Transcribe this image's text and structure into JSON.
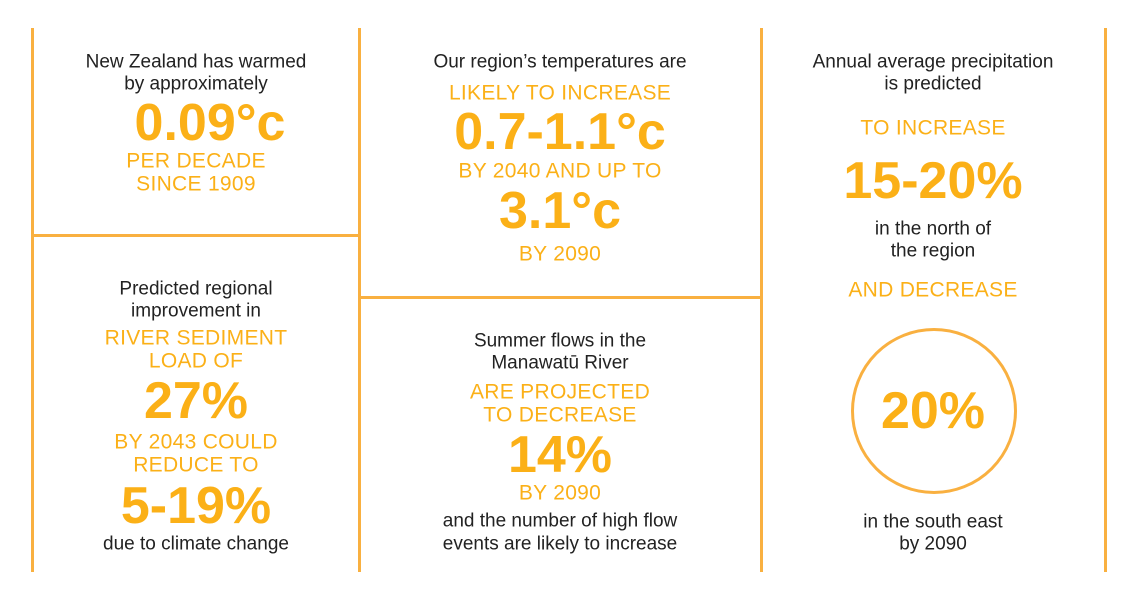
{
  "accent_color": "#FBB017",
  "line_color": "#F9B040",
  "panels": {
    "warming": {
      "intro": [
        "New Zealand has warmed",
        "by approximately"
      ],
      "value": "0.09°c",
      "detail": [
        "PER DECADE",
        "SINCE 1909"
      ]
    },
    "sediment": {
      "intro": [
        "Predicted regional",
        "improvement in"
      ],
      "highlight1": [
        "RIVER SEDIMENT",
        "LOAD OF"
      ],
      "value1": "27%",
      "highlight2": [
        "BY 2043 COULD",
        "REDUCE TO"
      ],
      "value2": "5-19%",
      "outro": "due to climate change"
    },
    "temperature": {
      "intro": "Our region’s temperatures are",
      "highlight1": "LIKELY TO INCREASE",
      "value1": "0.7-1.1°c",
      "highlight2": "BY 2040 AND UP TO",
      "value2": "3.1°c",
      "highlight3": "BY 2090"
    },
    "river": {
      "intro": [
        "Summer flows in the",
        "Manawatū River"
      ],
      "highlight1": [
        "ARE PROJECTED",
        "TO DECREASE"
      ],
      "value": "14%",
      "highlight2": "BY 2090",
      "outro": [
        "and the number of high flow",
        "events are likely to increase"
      ]
    },
    "precipitation": {
      "intro": [
        "Annual average precipitation",
        "is predicted"
      ],
      "highlight1": "TO INCREASE",
      "value1": "15-20%",
      "mid": [
        "in the north of",
        "the region"
      ],
      "highlight2": "AND DECREASE",
      "value2": "20%",
      "outro": [
        "in the south east",
        "by 2090"
      ]
    }
  }
}
